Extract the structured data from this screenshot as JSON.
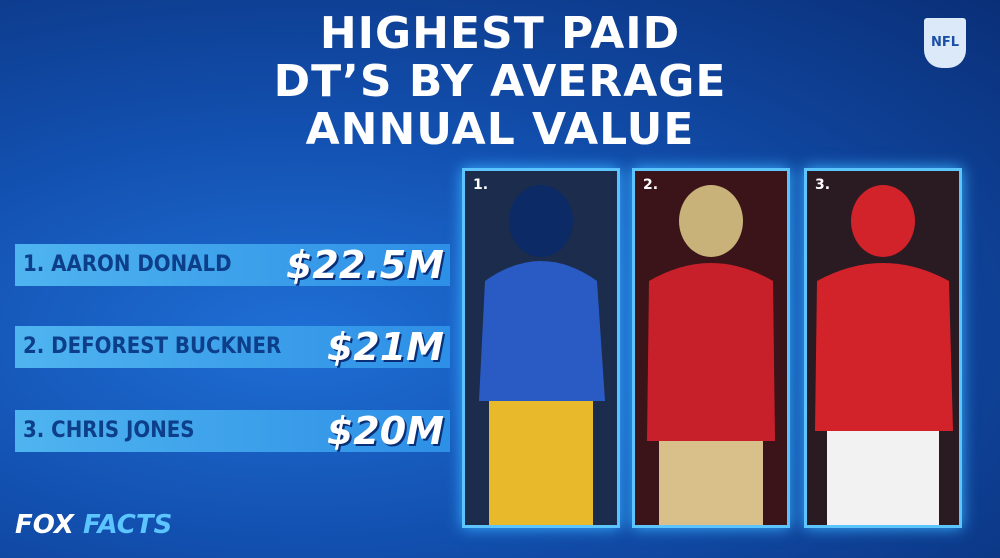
{
  "header": {
    "title_lines": [
      "HIGHEST PAID",
      "DT’S BY AVERAGE",
      "ANNUAL VALUE"
    ],
    "logo": "NFL"
  },
  "rankings": [
    {
      "player": "1. AARON DONALD",
      "amount": "$22.5M"
    },
    {
      "player": "2. DEFOREST BUCKNER",
      "amount": "$21M"
    },
    {
      "player": "3. CHRIS JONES",
      "amount": "$20M"
    }
  ],
  "photos": [
    {
      "label": "1."
    },
    {
      "label": "2."
    },
    {
      "label": "3."
    }
  ],
  "footer": {
    "brand": "FOX",
    "suffix": "FACTS"
  }
}
